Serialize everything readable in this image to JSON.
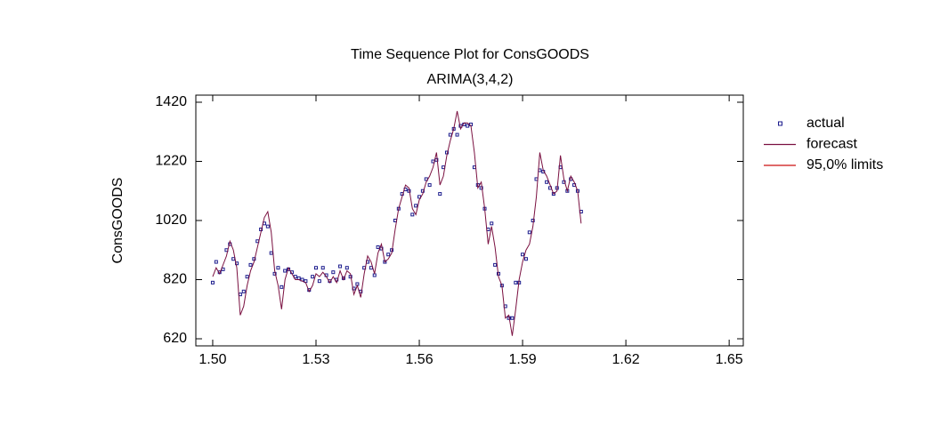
{
  "chart_data": {
    "type": "scatter",
    "title": "Time Sequence Plot for ConsGOODS",
    "subtitle": "ARIMA(3,4,2)",
    "y_label": "ConsGOODS",
    "xlim": [
      1.4951,
      1.6541
    ],
    "ylim": [
      596,
      1444
    ],
    "xticks": [
      {
        "value": 1.5,
        "label": "1.50"
      },
      1.53,
      1.56,
      1.59,
      1.62,
      1.65
    ],
    "yticks": [
      620,
      820,
      1020,
      1220,
      1420
    ],
    "legend": "right",
    "x": [
      1.5,
      1.501,
      1.502,
      1.503,
      1.504,
      1.505,
      1.506,
      1.507,
      1.508,
      1.509,
      1.51,
      1.511,
      1.512,
      1.513,
      1.514,
      1.515,
      1.516,
      1.517,
      1.518,
      1.519,
      1.52,
      1.521,
      1.522,
      1.523,
      1.524,
      1.525,
      1.526,
      1.527,
      1.528,
      1.529,
      1.53,
      1.531,
      1.532,
      1.533,
      1.534,
      1.535,
      1.536,
      1.537,
      1.538,
      1.539,
      1.54,
      1.541,
      1.542,
      1.543,
      1.544,
      1.545,
      1.546,
      1.547,
      1.548,
      1.549,
      1.55,
      1.551,
      1.552,
      1.553,
      1.554,
      1.555,
      1.556,
      1.557,
      1.558,
      1.559,
      1.56,
      1.561,
      1.562,
      1.563,
      1.564,
      1.565,
      1.566,
      1.567,
      1.568,
      1.569,
      1.57,
      1.571,
      1.572,
      1.573,
      1.574,
      1.575,
      1.576,
      1.577,
      1.578,
      1.579,
      1.58,
      1.581,
      1.582,
      1.583,
      1.584,
      1.585,
      1.586,
      1.587,
      1.588,
      1.589,
      1.59,
      1.591,
      1.592,
      1.593,
      1.594,
      1.595,
      1.596,
      1.597,
      1.598,
      1.599,
      1.6,
      1.601,
      1.602,
      1.603,
      1.604,
      1.605,
      1.606,
      1.607
    ],
    "series": [
      {
        "name": "actual",
        "color": "#1a1a8c",
        "mark": "point",
        "values": [
          810,
          880,
          845,
          855,
          920,
          940,
          890,
          875,
          770,
          780,
          830,
          870,
          890,
          950,
          990,
          1010,
          1000,
          910,
          840,
          860,
          795,
          850,
          855,
          845,
          830,
          825,
          820,
          815,
          785,
          830,
          860,
          815,
          860,
          835,
          815,
          845,
          820,
          865,
          825,
          860,
          830,
          790,
          805,
          780,
          860,
          880,
          860,
          835,
          930,
          925,
          880,
          905,
          920,
          1020,
          1060,
          1110,
          1125,
          1120,
          1040,
          1070,
          1100,
          1120,
          1160,
          1140,
          1220,
          1225,
          1110,
          1200,
          1250,
          1310,
          1330,
          1310,
          1340,
          1345,
          1340,
          1345,
          1200,
          1140,
          1130,
          1060,
          990,
          1010,
          870,
          840,
          800,
          730,
          690,
          690,
          810,
          810,
          905,
          890,
          980,
          1020,
          1160,
          1190,
          1185,
          1150,
          1130,
          1110,
          1130,
          1200,
          1150,
          1120,
          1160,
          1140,
          1120,
          1050
        ]
      },
      {
        "name": "forecast",
        "color": "#7a1040",
        "mark": "line",
        "values": [
          830,
          860,
          840,
          870,
          900,
          950,
          920,
          860,
          700,
          730,
          800,
          850,
          880,
          930,
          980,
          1030,
          1050,
          980,
          850,
          800,
          720,
          820,
          860,
          840,
          820,
          820,
          815,
          810,
          780,
          800,
          840,
          830,
          845,
          830,
          810,
          830,
          810,
          850,
          820,
          850,
          840,
          770,
          800,
          760,
          840,
          900,
          880,
          840,
          910,
          940,
          880,
          890,
          910,
          990,
          1060,
          1100,
          1140,
          1130,
          1060,
          1040,
          1090,
          1110,
          1150,
          1170,
          1200,
          1250,
          1140,
          1170,
          1240,
          1290,
          1330,
          1390,
          1330,
          1350,
          1350,
          1340,
          1250,
          1130,
          1150,
          1060,
          940,
          1000,
          930,
          830,
          800,
          690,
          700,
          630,
          720,
          820,
          880,
          920,
          940,
          1000,
          1100,
          1250,
          1190,
          1170,
          1140,
          1110,
          1120,
          1240,
          1160,
          1120,
          1170,
          1150,
          1120,
          1010
        ]
      },
      {
        "name": "95,0% limits",
        "color": "#cc1010",
        "mark": "line",
        "values": [
          null,
          null,
          null,
          null,
          null,
          null,
          null,
          null,
          null,
          null,
          null,
          null,
          null,
          null,
          null,
          null,
          null,
          null,
          null,
          null,
          null,
          null,
          null,
          null,
          null,
          null,
          null,
          null,
          null,
          null,
          null,
          null,
          null,
          null,
          null,
          null,
          null,
          null,
          null,
          null,
          null,
          null,
          null,
          null,
          null,
          null,
          null,
          null,
          null,
          null,
          null,
          null,
          null,
          null,
          null,
          null,
          null,
          null,
          null,
          null,
          null,
          null,
          null,
          null,
          null,
          null,
          null,
          null,
          null,
          null,
          null,
          null,
          null,
          null,
          null,
          null,
          null,
          null,
          null,
          null,
          null,
          null,
          null,
          null,
          null,
          null,
          null,
          null,
          null,
          null,
          null,
          null,
          null,
          null,
          null,
          null,
          null,
          null,
          null,
          null,
          null,
          null,
          null,
          null,
          null,
          null,
          null,
          null
        ]
      }
    ]
  }
}
